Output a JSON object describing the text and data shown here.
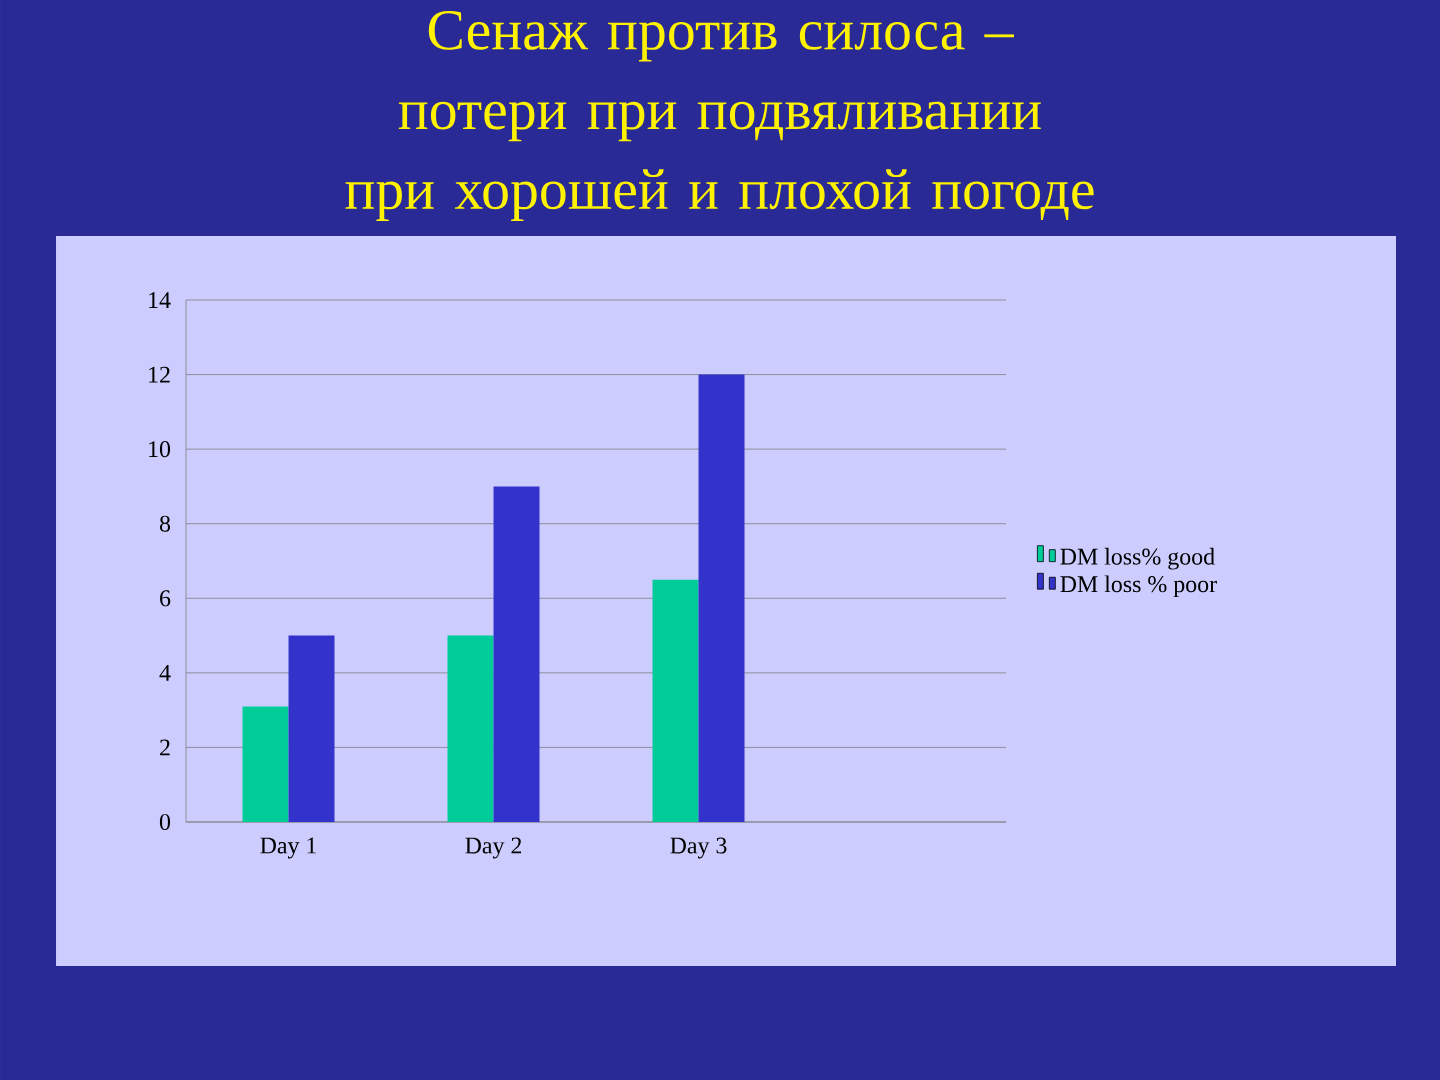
{
  "chart_data": {
    "type": "bar",
    "title": "Сенаж против силоса – потери при подвяливании при хорошей и плохой погоде",
    "categories": [
      "Day 1",
      "Day 2",
      "Day 3",
      null
    ],
    "series": [
      {
        "name": "DM loss% good",
        "color": "#00cc99",
        "values": [
          3.1,
          5,
          6.5,
          null
        ]
      },
      {
        "name": "DM loss % poor",
        "color": "#3333cc",
        "values": [
          5,
          9,
          12,
          null
        ]
      }
    ],
    "ylim": [
      0,
      14
    ],
    "yticks": [
      0,
      2,
      4,
      6,
      8,
      10,
      12,
      14
    ],
    "grid": "y",
    "legend": "right"
  }
}
